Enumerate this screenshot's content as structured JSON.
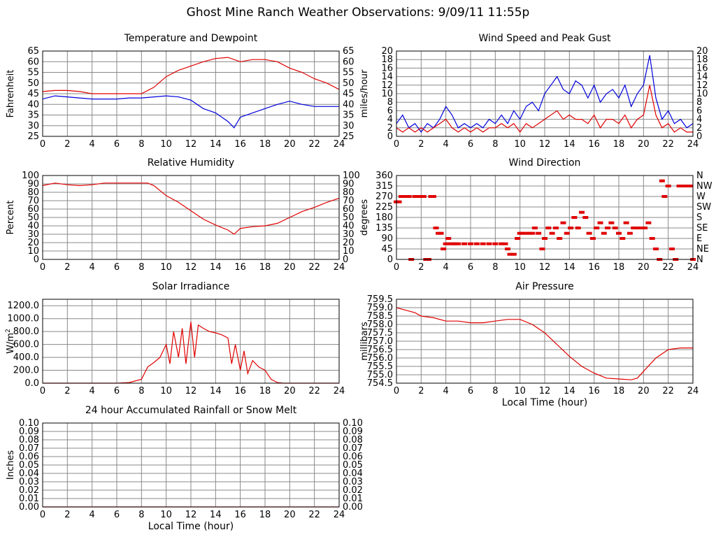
{
  "page": {
    "title": "Ghost Mine Ranch Weather Observations: 9/09/11 11:55p"
  },
  "colors": {
    "primary": "#e00000",
    "secondary": "#0000dd",
    "grid": "#888888",
    "background": "#ffffff"
  },
  "chart_data": [
    {
      "id": "temperature",
      "type": "line",
      "title": "Temperature and Dewpoint",
      "xlabel": "",
      "ylabel": "Fahrenheit",
      "right_axis": true,
      "xlim": [
        0,
        24
      ],
      "ylim": [
        25,
        65
      ],
      "xticks": [
        0,
        2,
        4,
        6,
        8,
        10,
        12,
        14,
        16,
        18,
        20,
        22,
        24
      ],
      "yticks": [
        25,
        30,
        35,
        40,
        45,
        50,
        55,
        60,
        65
      ],
      "series": [
        {
          "color": "#e00000",
          "x": [
            0,
            1,
            2,
            3,
            4,
            5,
            6,
            7,
            8,
            9,
            10,
            11,
            12,
            13,
            14,
            15,
            16,
            17,
            18,
            19,
            20,
            21,
            22,
            23,
            24
          ],
          "y": [
            46,
            46.5,
            46.5,
            46,
            45,
            45,
            45,
            45,
            45,
            48,
            53,
            56,
            58,
            60,
            61.5,
            62,
            60,
            61,
            61,
            60,
            57,
            55,
            52,
            50,
            47
          ]
        },
        {
          "color": "#0000dd",
          "x": [
            0,
            1,
            2,
            3,
            4,
            5,
            6,
            7,
            8,
            9,
            10,
            11,
            12,
            13,
            14,
            15,
            15.5,
            16,
            17,
            18,
            19,
            20,
            21,
            22,
            23,
            24
          ],
          "y": [
            42.5,
            44,
            43.5,
            43,
            42.5,
            42.5,
            42.5,
            43,
            43,
            43.5,
            44,
            43.5,
            42,
            38,
            36,
            32,
            29,
            34,
            36,
            38,
            40,
            41.5,
            40,
            39,
            39,
            39
          ]
        }
      ]
    },
    {
      "id": "wind_speed",
      "type": "line",
      "title": "Wind Speed and Peak Gust",
      "xlabel": "",
      "ylabel": "miles/hour",
      "right_axis": true,
      "xlim": [
        0,
        24
      ],
      "ylim": [
        0,
        20
      ],
      "xticks": [
        0,
        2,
        4,
        6,
        8,
        10,
        12,
        14,
        16,
        18,
        20,
        22,
        24
      ],
      "yticks": [
        0,
        2,
        4,
        6,
        8,
        10,
        12,
        14,
        16,
        18,
        20
      ],
      "series": [
        {
          "color": "#0000dd",
          "x": [
            0,
            0.5,
            1,
            1.5,
            2,
            2.5,
            3,
            3.5,
            4,
            4.5,
            5,
            5.5,
            6,
            6.5,
            7,
            7.5,
            8,
            8.5,
            9,
            9.5,
            10,
            10.5,
            11,
            11.5,
            12,
            12.5,
            13,
            13.5,
            14,
            14.5,
            15,
            15.5,
            16,
            16.5,
            17,
            17.5,
            18,
            18.5,
            19,
            19.5,
            20,
            20.5,
            21,
            21.5,
            22,
            22.5,
            23,
            23.5,
            24
          ],
          "y": [
            3,
            5,
            2,
            3,
            1,
            3,
            2,
            4,
            7,
            5,
            2,
            3,
            2,
            3,
            2,
            4,
            3,
            5,
            3,
            6,
            4,
            7,
            8,
            6,
            10,
            12,
            14,
            11,
            10,
            13,
            12,
            9,
            12,
            8,
            10,
            11,
            9,
            12,
            7,
            10,
            12,
            19,
            9,
            4,
            6,
            3,
            4,
            2,
            3
          ]
        },
        {
          "color": "#e00000",
          "x": [
            0,
            0.5,
            1,
            1.5,
            2,
            2.5,
            3,
            3.5,
            4,
            4.5,
            5,
            5.5,
            6,
            6.5,
            7,
            7.5,
            8,
            8.5,
            9,
            9.5,
            10,
            10.5,
            11,
            11.5,
            12,
            12.5,
            13,
            13.5,
            14,
            14.5,
            15,
            15.5,
            16,
            16.5,
            17,
            17.5,
            18,
            18.5,
            19,
            19.5,
            20,
            20.5,
            21,
            21.5,
            22,
            22.5,
            23,
            23.5,
            24
          ],
          "y": [
            2,
            1,
            2,
            1,
            2,
            1,
            2,
            3,
            4,
            2,
            1,
            2,
            1,
            2,
            1,
            2,
            2,
            3,
            2,
            3,
            1,
            3,
            2,
            3,
            4,
            5,
            6,
            4,
            5,
            4,
            4,
            3,
            5,
            2,
            4,
            4,
            3,
            5,
            2,
            4,
            5,
            12,
            5,
            2,
            3,
            1,
            2,
            1,
            1
          ]
        }
      ]
    },
    {
      "id": "humidity",
      "type": "line",
      "title": "Relative Humidity",
      "xlabel": "",
      "ylabel": "Percent",
      "right_axis": true,
      "xlim": [
        0,
        24
      ],
      "ylim": [
        0,
        100
      ],
      "xticks": [
        0,
        2,
        4,
        6,
        8,
        10,
        12,
        14,
        16,
        18,
        20,
        22,
        24
      ],
      "yticks": [
        0,
        10,
        20,
        30,
        40,
        50,
        60,
        70,
        80,
        90,
        100
      ],
      "series": [
        {
          "color": "#e00000",
          "x": [
            0,
            1,
            2,
            3,
            4,
            5,
            6,
            7,
            8,
            8.5,
            9,
            10,
            11,
            12,
            13,
            14,
            15,
            15.5,
            16,
            17,
            18,
            19,
            20,
            21,
            22,
            23,
            24
          ],
          "y": [
            88,
            91,
            89,
            88,
            89,
            91,
            91,
            91,
            91,
            91,
            88,
            76,
            68,
            58,
            48,
            41,
            35,
            30,
            37,
            39,
            40,
            43,
            50,
            57,
            62,
            68,
            73
          ]
        }
      ]
    },
    {
      "id": "wind_direction",
      "type": "scatter",
      "title": "Wind Direction",
      "xlabel": "",
      "ylabel": "degrees",
      "xlim": [
        0,
        24
      ],
      "ylim": [
        0,
        360
      ],
      "xticks": [
        0,
        2,
        4,
        6,
        8,
        10,
        12,
        14,
        16,
        18,
        20,
        22,
        24
      ],
      "yticks": [
        0,
        45,
        90,
        135,
        180,
        225,
        270,
        315,
        360
      ],
      "right_ticks": [
        "N",
        "NE",
        "E",
        "SE",
        "S",
        "SW",
        "W",
        "NW",
        "N"
      ],
      "series": [
        {
          "color": "#e00000",
          "x": [
            0,
            0.2,
            0.4,
            0.6,
            0.8,
            1.0,
            1.2,
            1.5,
            1.7,
            2.0,
            2.2,
            2.4,
            2.6,
            2.8,
            3.0,
            3.2,
            3.4,
            3.6,
            3.8,
            4.0,
            4.2,
            4.4,
            4.6,
            4.8,
            5.0,
            5.5,
            6.0,
            6.5,
            7.0,
            7.5,
            8.0,
            8.5,
            8.8,
            9.0,
            9.2,
            9.5,
            9.8,
            10.0,
            10.2,
            10.5,
            10.8,
            11.0,
            11.2,
            11.5,
            11.8,
            12.0,
            12.3,
            12.6,
            12.9,
            13.2,
            13.5,
            13.8,
            14.1,
            14.4,
            14.7,
            15.0,
            15.3,
            15.6,
            15.9,
            16.2,
            16.5,
            16.8,
            17.1,
            17.4,
            17.7,
            18.0,
            18.3,
            18.6,
            18.9,
            19.2,
            19.5,
            19.8,
            20.1,
            20.4,
            20.7,
            21.0,
            21.3,
            21.5,
            21.7,
            22.0,
            22.3,
            22.6,
            22.9,
            23.2,
            23.5,
            23.8,
            24.0
          ],
          "y": [
            247,
            247,
            270,
            270,
            270,
            270,
            0,
            270,
            270,
            270,
            270,
            0,
            0,
            270,
            270,
            135,
            112,
            112,
            45,
            67,
            90,
            67,
            67,
            67,
            67,
            67,
            67,
            67,
            67,
            67,
            67,
            67,
            67,
            45,
            22,
            22,
            90,
            112,
            112,
            112,
            112,
            112,
            135,
            112,
            45,
            90,
            135,
            112,
            135,
            90,
            157,
            112,
            135,
            180,
            135,
            202,
            180,
            112,
            90,
            135,
            157,
            112,
            135,
            157,
            135,
            112,
            90,
            157,
            112,
            135,
            135,
            135,
            135,
            157,
            90,
            45,
            0,
            337,
            270,
            315,
            45,
            0,
            315,
            315,
            315,
            315,
            0
          ]
        }
      ]
    },
    {
      "id": "solar",
      "type": "line",
      "title": "Solar Irradiance",
      "xlabel": "",
      "ylabel": "W/m2",
      "xlim": [
        0,
        24
      ],
      "ylim": [
        0,
        1300
      ],
      "xticks": [
        0,
        2,
        4,
        6,
        8,
        10,
        12,
        14,
        16,
        18,
        20,
        22,
        24
      ],
      "yticks": [
        0,
        200,
        400,
        600,
        800,
        1000,
        1200
      ],
      "series": [
        {
          "color": "#e00000",
          "x": [
            0,
            6,
            7,
            8,
            8.5,
            9,
            9.5,
            10,
            10.3,
            10.6,
            11,
            11.3,
            11.6,
            12,
            12.3,
            12.6,
            13,
            13.5,
            14,
            14.5,
            15,
            15.3,
            15.6,
            16,
            16.3,
            16.6,
            17,
            17.5,
            18,
            18.5,
            19,
            19.5,
            20,
            24
          ],
          "y": [
            0,
            0,
            10,
            60,
            250,
            320,
            400,
            600,
            300,
            800,
            400,
            850,
            300,
            950,
            400,
            900,
            850,
            800,
            780,
            750,
            700,
            300,
            600,
            200,
            500,
            150,
            350,
            250,
            200,
            60,
            10,
            0,
            0,
            0
          ]
        }
      ]
    },
    {
      "id": "pressure",
      "type": "line",
      "title": "Air Pressure",
      "xlabel": "Local Time (hour)",
      "ylabel": "millibars",
      "xlim": [
        0,
        24
      ],
      "ylim": [
        754.5,
        759.5
      ],
      "xticks": [
        0,
        2,
        4,
        6,
        8,
        10,
        12,
        14,
        16,
        18,
        20,
        22,
        24
      ],
      "yticks": [
        754.5,
        755.0,
        755.5,
        756.0,
        756.5,
        757.0,
        757.5,
        758.0,
        758.5,
        759.0,
        759.5
      ],
      "series": [
        {
          "color": "#e00000",
          "x": [
            0,
            0.5,
            1,
            1.5,
            2,
            3,
            4,
            5,
            6,
            7,
            8,
            9,
            10,
            11,
            12,
            13,
            14,
            15,
            16,
            17,
            18,
            19,
            19.5,
            20,
            21,
            22,
            23,
            24
          ],
          "y": [
            759.0,
            758.9,
            758.8,
            758.7,
            758.5,
            758.4,
            758.2,
            758.2,
            758.1,
            758.1,
            758.2,
            758.3,
            758.3,
            758.0,
            757.5,
            756.8,
            756.1,
            755.5,
            755.1,
            754.8,
            754.75,
            754.7,
            754.8,
            755.2,
            756.0,
            756.5,
            756.6,
            756.6
          ]
        }
      ]
    },
    {
      "id": "rainfall",
      "type": "line",
      "title": "24 hour Accumulated Rainfall or Snow Melt",
      "xlabel": "Local Time (hour)",
      "ylabel": "Inches",
      "right_axis": true,
      "xlim": [
        0,
        24
      ],
      "ylim": [
        0,
        0.1
      ],
      "xticks": [
        0,
        2,
        4,
        6,
        8,
        10,
        12,
        14,
        16,
        18,
        20,
        22,
        24
      ],
      "yticks": [
        0.0,
        0.01,
        0.02,
        0.03,
        0.04,
        0.05,
        0.06,
        0.07,
        0.08,
        0.09,
        0.1
      ],
      "series": [
        {
          "color": "#e00000",
          "x": [
            0,
            24
          ],
          "y": [
            0,
            0
          ]
        }
      ]
    }
  ]
}
